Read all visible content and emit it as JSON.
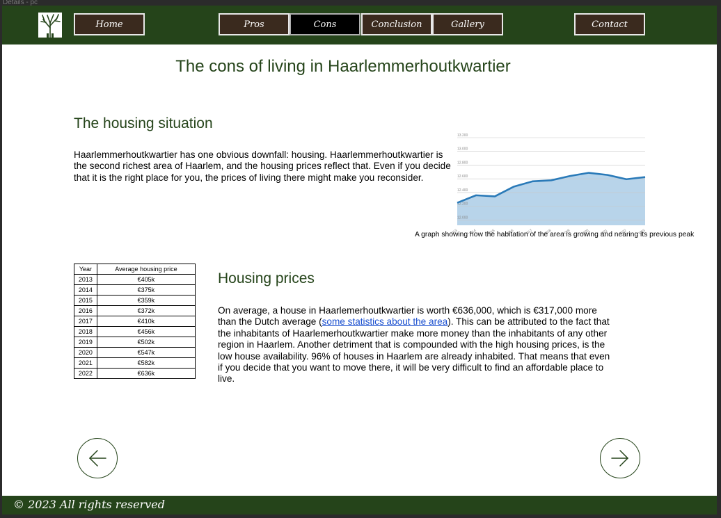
{
  "window": {
    "title": "Details - pc"
  },
  "nav": {
    "home": "Home",
    "pros": "Pros",
    "cons": "Cons",
    "conclusion": "Conclusion",
    "gallery": "Gallery",
    "contact": "Contact",
    "active": "cons"
  },
  "page": {
    "title": "The cons of living in Haarlemmerhoutkwartier"
  },
  "housing_situation": {
    "heading": "The housing situation",
    "text": "Haarlemmerhoutkwartier has one obvious downfall: housing. Haarlemmerhoutkwartier is the second richest area of Haarlem, and the housing prices reflect that. Even if you decide that it is the right place for you, the prices of living there might make you reconsider."
  },
  "chart_caption": "A graph showing how the habitation of the area is growing and nearing its previous peak",
  "chart_data": {
    "type": "area",
    "x": [
      "2013",
      "2014",
      "2015",
      "2016",
      "2017",
      "2018",
      "2019",
      "2020",
      "2021",
      "2022",
      "2023"
    ],
    "y": [
      12540,
      12610,
      12600,
      12690,
      12740,
      12750,
      12790,
      12820,
      12800,
      12760,
      12780
    ],
    "ylim": [
      12330,
      13200
    ],
    "yticks": [
      "13.200",
      "13.000",
      "12.800",
      "12.600",
      "12.400",
      "12.200",
      "12.000"
    ],
    "grid": true,
    "line_color": "#2a7ab8",
    "fill_color": "#b8d4ea"
  },
  "table": {
    "headers": [
      "Year",
      "Average housing price"
    ],
    "rows": [
      [
        "2013",
        "€405k"
      ],
      [
        "2014",
        "€375k"
      ],
      [
        "2015",
        "€359k"
      ],
      [
        "2016",
        "€372k"
      ],
      [
        "2017",
        "€410k"
      ],
      [
        "2018",
        "€456k"
      ],
      [
        "2019",
        "€502k"
      ],
      [
        "2020",
        "€547k"
      ],
      [
        "2021",
        "€582k"
      ],
      [
        "2022",
        "€636k"
      ]
    ]
  },
  "housing_prices": {
    "heading": "Housing prices",
    "text_before_link": "On average, a house in Haarlemerhoutkwartier is worth €636,000, which is €317,000 more than the Dutch average (",
    "link": "some statistics about the area",
    "text_after_link": "). This can be attributed to the fact that the inhabitants of Haarlemerhoutkwartier make more money than the inhabitants of any other region in Haarlem. Another detriment that is compounded with the high housing prices, is the low house availability. 96% of houses in Haarlem are already inhabited. That means that even if you decide that you want to move there, it will be very difficult to find an affordable place to live."
  },
  "footer": {
    "text": "© 2023 All rights reserved"
  },
  "colors": {
    "brand": "#25441a",
    "button_bg": "#3a2a1e",
    "active_bg": "#000000",
    "link": "#1a4fcf"
  }
}
